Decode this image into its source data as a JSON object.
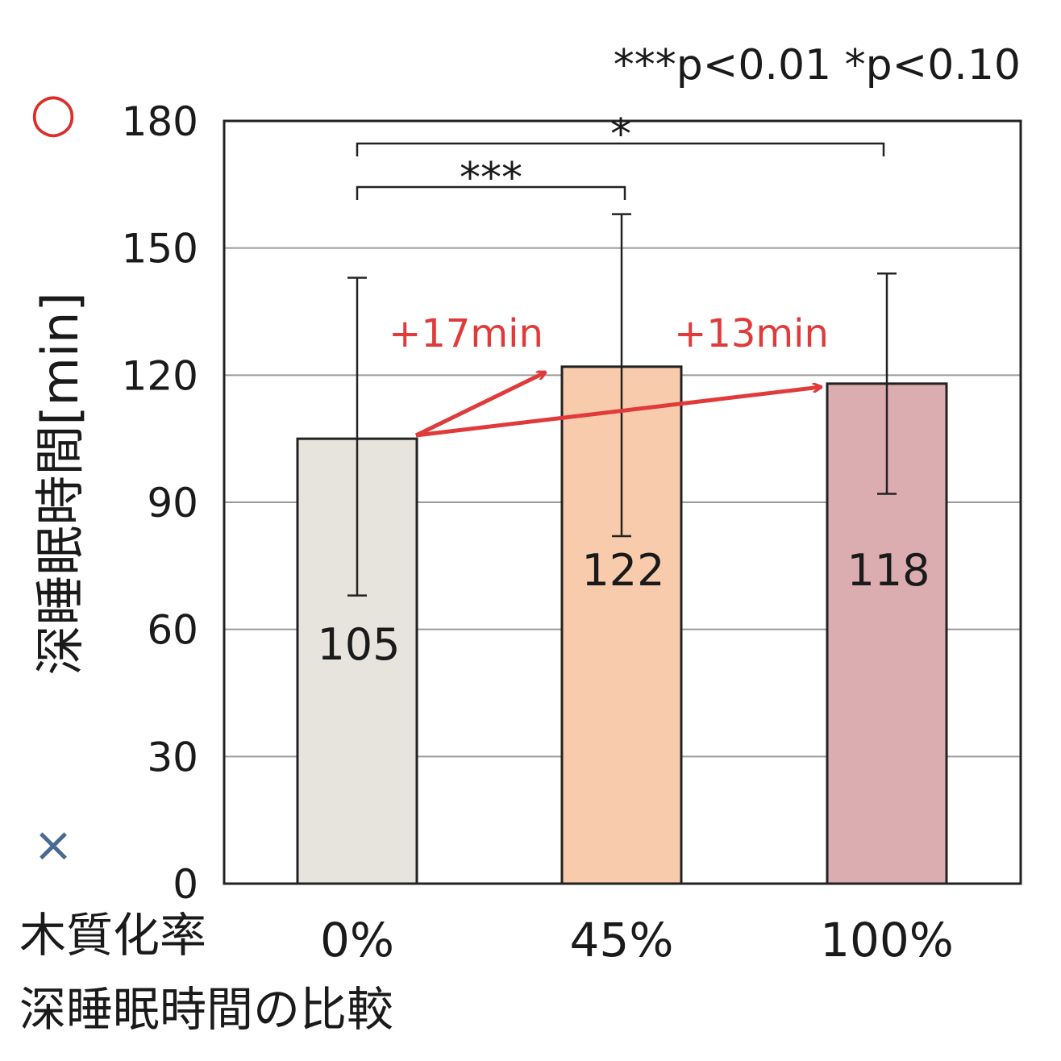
{
  "chart_data": {
    "type": "bar",
    "title": "",
    "caption": "深睡眠時間の比較",
    "xlabel": "木質化率",
    "ylabel": "深睡眠時間[min]",
    "categories": [
      "0%",
      "45%",
      "100%"
    ],
    "values": [
      105,
      122,
      118
    ],
    "data_labels": [
      "105",
      "122",
      "118"
    ],
    "error_bars": [
      {
        "low": 68,
        "high": 143
      },
      {
        "low": 82,
        "high": 158
      },
      {
        "low": 92,
        "high": 144
      }
    ],
    "ylim": [
      0,
      180
    ],
    "yticks": [
      0,
      30,
      60,
      90,
      120,
      150,
      180
    ],
    "ytick_labels": [
      "0",
      "30",
      "60",
      "90",
      "120",
      "150",
      "180"
    ],
    "grid": true,
    "bar_colors": [
      "#e6e4dc",
      "#f8cbad",
      "#dcadb0"
    ],
    "significance_note": "***p<0.01  *p<0.10",
    "significance": [
      {
        "from": "0%",
        "to": "45%",
        "label": "***"
      },
      {
        "from": "0%",
        "to": "100%",
        "label": "*"
      }
    ],
    "annotations": [
      {
        "text": "+17min",
        "from": "0%",
        "to": "45%"
      },
      {
        "text": "+13min",
        "from": "0%",
        "to": "100%"
      }
    ],
    "axis_marks": {
      "top": "○",
      "bottom": "×"
    },
    "annotation_color": "#e03a3a",
    "circle_color": "#d9302c",
    "cross_color": "#4a6a93"
  }
}
